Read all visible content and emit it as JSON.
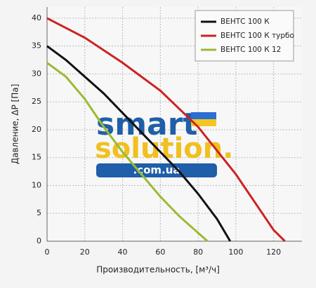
{
  "chart_data": {
    "type": "line",
    "xlabel": "Производительность, [м³/ч]",
    "ylabel": "Давление, ΔP [Па]",
    "xlim": [
      0,
      135
    ],
    "xticks": [
      0,
      20,
      40,
      60,
      80,
      100,
      120
    ],
    "ylim": [
      0,
      42
    ],
    "yticks": [
      0,
      5,
      10,
      15,
      20,
      25,
      30,
      35,
      40
    ],
    "grid": true,
    "legend": "upper right",
    "watermark": [
      "smart",
      "solution.",
      ".com.ua"
    ],
    "series": [
      {
        "name": "ВЕНТС 100 К",
        "color": "#111111",
        "x": [
          0,
          10,
          20,
          30,
          40,
          50,
          60,
          70,
          80,
          90,
          97
        ],
        "values": [
          35,
          32.5,
          29.5,
          26.5,
          23,
          19.5,
          16,
          12.5,
          8.5,
          4,
          0
        ]
      },
      {
        "name": "ВЕНТС 100 К турбо",
        "color": "#cc2222",
        "x": [
          0,
          20,
          40,
          60,
          80,
          100,
          110,
          120,
          126
        ],
        "values": [
          40,
          36.5,
          32,
          27,
          20.5,
          12,
          7,
          2,
          0
        ]
      },
      {
        "name": "ВЕНТС 100 К 12",
        "color": "#99bb33",
        "x": [
          0,
          10,
          20,
          30,
          40,
          50,
          60,
          70,
          80,
          85
        ],
        "values": [
          32,
          29.5,
          25.5,
          20.5,
          16,
          12,
          8,
          4.5,
          1.5,
          0
        ]
      }
    ]
  }
}
